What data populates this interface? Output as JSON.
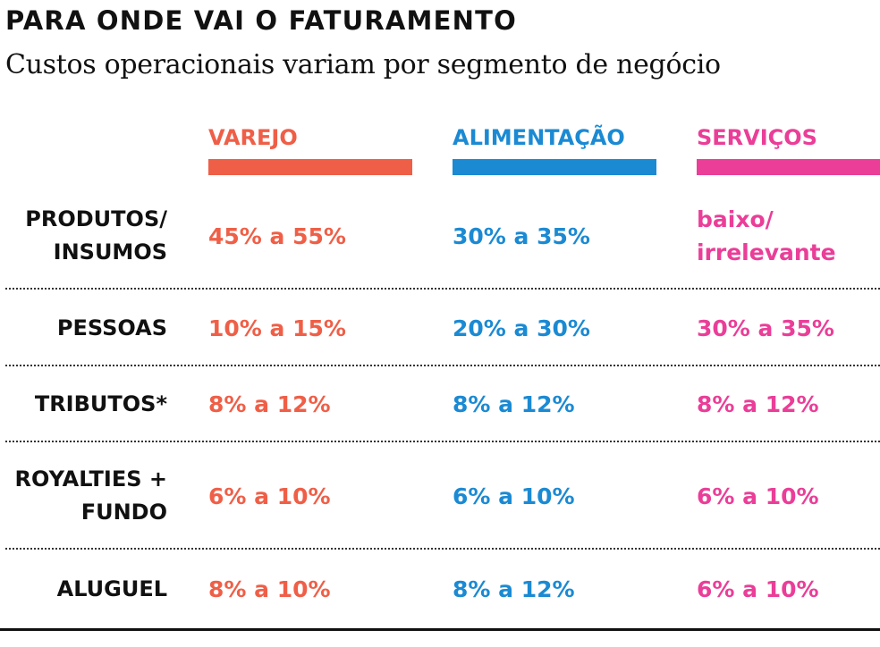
{
  "colors": {
    "varejo": "#ef5f47",
    "alimentacao": "#1b8ad3",
    "servicos": "#ea3e98",
    "text": "#111111"
  },
  "chart_data": {
    "type": "table",
    "title": "PARA ONDE VAI O FATURAMENTO",
    "subtitle": "Custos operacionais variam por segmento de negócio",
    "columns": [
      {
        "key": "varejo",
        "label": "VAREJO",
        "color": "#ef5f47"
      },
      {
        "key": "alimentacao",
        "label": "ALIMENTAÇÃO",
        "color": "#1b8ad3"
      },
      {
        "key": "servicos",
        "label": "SERVIÇOS",
        "color": "#ea3e98"
      }
    ],
    "rows": [
      {
        "label": "PRODUTOS/\nINSUMOS",
        "values": [
          "45% a 55%",
          "30% a 35%",
          "baixo/\nirrelevante"
        ]
      },
      {
        "label": "PESSOAS",
        "values": [
          "10% a 15%",
          "20% a 30%",
          "30% a 35%"
        ]
      },
      {
        "label": "TRIBUTOS*",
        "values": [
          "8% a 12%",
          "8% a 12%",
          "8% a 12%"
        ]
      },
      {
        "label": "ROYALTIES +\nFUNDO",
        "values": [
          "6% a 10%",
          "6% a 10%",
          "6% a 10%"
        ]
      },
      {
        "label": "ALUGUEL",
        "values": [
          "8% a 10%",
          "8% a 12%",
          "6% a 10%"
        ]
      }
    ]
  }
}
